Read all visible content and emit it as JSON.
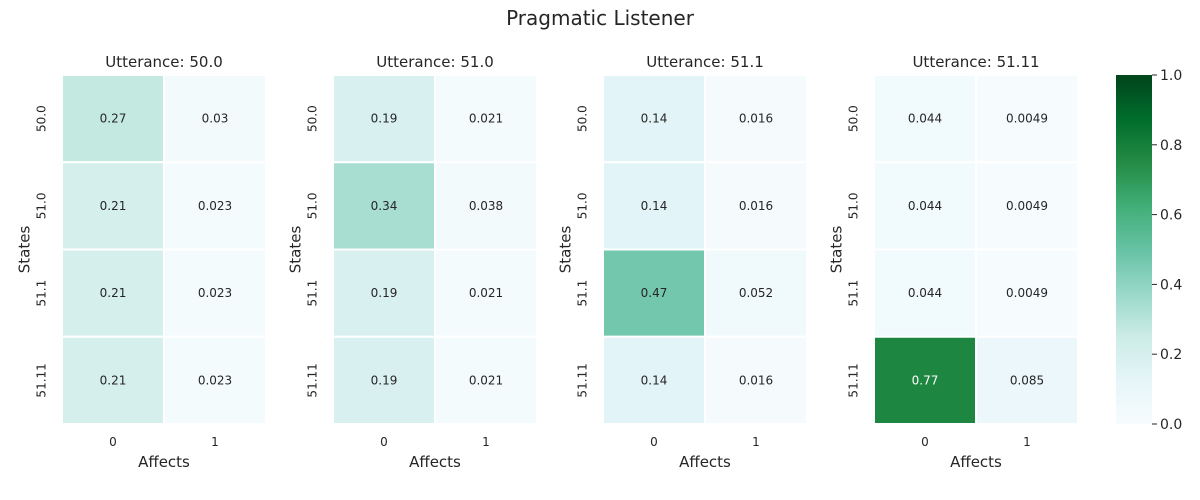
{
  "chart_data": {
    "type": "heatmap",
    "title": "Pragmatic Listener",
    "xlabel": "Affects",
    "ylabel": "States",
    "x_ticks": [
      "0",
      "1"
    ],
    "y_ticks": [
      "50.0",
      "51.0",
      "51.1",
      "51.11"
    ],
    "colorbar": {
      "range": [
        0.0,
        1.0
      ],
      "ticks": [
        "0.0",
        "0.2",
        "0.4",
        "0.6",
        "0.8",
        "1.0"
      ],
      "colormap": "BuGn"
    },
    "panels": [
      {
        "title": "Utterance: 50.0",
        "values": [
          [
            0.27,
            0.03
          ],
          [
            0.21,
            0.023
          ],
          [
            0.21,
            0.023
          ],
          [
            0.21,
            0.023
          ]
        ],
        "labels": [
          [
            "0.27",
            "0.03"
          ],
          [
            "0.21",
            "0.023"
          ],
          [
            "0.21",
            "0.023"
          ],
          [
            "0.21",
            "0.023"
          ]
        ]
      },
      {
        "title": "Utterance: 51.0",
        "values": [
          [
            0.19,
            0.021
          ],
          [
            0.34,
            0.038
          ],
          [
            0.19,
            0.021
          ],
          [
            0.19,
            0.021
          ]
        ],
        "labels": [
          [
            "0.19",
            "0.021"
          ],
          [
            "0.34",
            "0.038"
          ],
          [
            "0.19",
            "0.021"
          ],
          [
            "0.19",
            "0.021"
          ]
        ]
      },
      {
        "title": "Utterance: 51.1",
        "values": [
          [
            0.14,
            0.016
          ],
          [
            0.14,
            0.016
          ],
          [
            0.47,
            0.052
          ],
          [
            0.14,
            0.016
          ]
        ],
        "labels": [
          [
            "0.14",
            "0.016"
          ],
          [
            "0.14",
            "0.016"
          ],
          [
            "0.47",
            "0.052"
          ],
          [
            "0.14",
            "0.016"
          ]
        ]
      },
      {
        "title": "Utterance: 51.11",
        "values": [
          [
            0.044,
            0.0049
          ],
          [
            0.044,
            0.0049
          ],
          [
            0.044,
            0.0049
          ],
          [
            0.77,
            0.085
          ]
        ],
        "labels": [
          [
            "0.044",
            "0.0049"
          ],
          [
            "0.044",
            "0.0049"
          ],
          [
            "0.044",
            "0.0049"
          ],
          [
            "0.77",
            "0.085"
          ]
        ]
      }
    ]
  }
}
